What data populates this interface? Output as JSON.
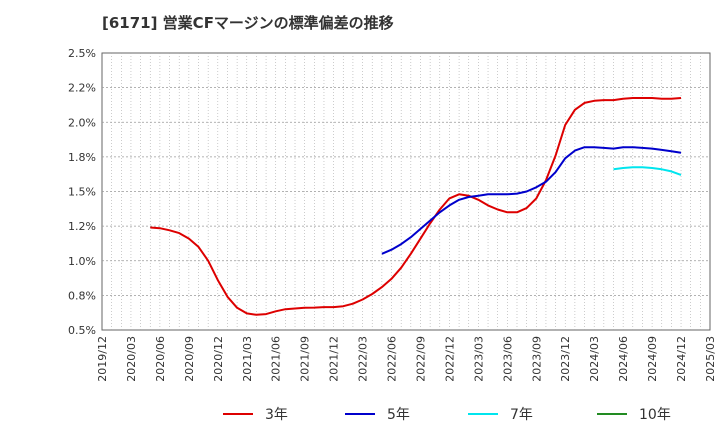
{
  "title": "[6171]  営業CFマージンの標準偏差の推移",
  "chart_data": {
    "type": "line",
    "title": "[6171]  営業CFマージンの標準偏差の推移",
    "xlabel": "",
    "ylabel": "",
    "grid": true,
    "legend_position": "bottom",
    "x_ticks": [
      "2019/12",
      "2020/03",
      "2020/06",
      "2020/09",
      "2020/12",
      "2021/03",
      "2021/06",
      "2021/09",
      "2021/12",
      "2022/03",
      "2022/06",
      "2022/09",
      "2022/12",
      "2023/03",
      "2023/06",
      "2023/09",
      "2023/12",
      "2024/03",
      "2024/06",
      "2024/09",
      "2024/12",
      "2025/03"
    ],
    "x_range": [
      "2019-12",
      "2025-03"
    ],
    "y_ticks": [
      "0.5%",
      "0.8%",
      "1.0%",
      "1.2%",
      "1.5%",
      "1.8%",
      "2.0%",
      "2.2%",
      "2.5%"
    ],
    "ylim": [
      0.5,
      2.5
    ],
    "y_unit": "%",
    "series": [
      {
        "name": "3年",
        "color": "#dd0000",
        "x": [
          "2020-05",
          "2020-06",
          "2020-07",
          "2020-08",
          "2020-09",
          "2020-10",
          "2020-11",
          "2020-12",
          "2021-01",
          "2021-02",
          "2021-03",
          "2021-04",
          "2021-05",
          "2021-06",
          "2021-07",
          "2021-08",
          "2021-09",
          "2021-10",
          "2021-11",
          "2021-12",
          "2022-01",
          "2022-02",
          "2022-03",
          "2022-04",
          "2022-05",
          "2022-06",
          "2022-07",
          "2022-08",
          "2022-09",
          "2022-10",
          "2022-11",
          "2022-12",
          "2023-01",
          "2023-02",
          "2023-03",
          "2023-04",
          "2023-05",
          "2023-06",
          "2023-07",
          "2023-08",
          "2023-09",
          "2023-10",
          "2023-11",
          "2023-12",
          "2024-01",
          "2024-02",
          "2024-03",
          "2024-04",
          "2024-05",
          "2024-06",
          "2024-07",
          "2024-08",
          "2024-09",
          "2024-10",
          "2024-11",
          "2024-12"
        ],
        "values": [
          1.24,
          1.235,
          1.22,
          1.2,
          1.16,
          1.1,
          1.0,
          0.86,
          0.74,
          0.66,
          0.62,
          0.61,
          0.615,
          0.635,
          0.65,
          0.655,
          0.66,
          0.662,
          0.665,
          0.665,
          0.672,
          0.69,
          0.72,
          0.76,
          0.81,
          0.87,
          0.95,
          1.05,
          1.16,
          1.27,
          1.37,
          1.45,
          1.48,
          1.47,
          1.44,
          1.4,
          1.37,
          1.35,
          1.35,
          1.38,
          1.45,
          1.58,
          1.76,
          1.98,
          2.09,
          2.14,
          2.155,
          2.16,
          2.16,
          2.17,
          2.175,
          2.175,
          2.175,
          2.17,
          2.17,
          2.175
        ]
      },
      {
        "name": "5年",
        "color": "#0000cc",
        "x": [
          "2022-05",
          "2022-06",
          "2022-07",
          "2022-08",
          "2022-09",
          "2022-10",
          "2022-11",
          "2022-12",
          "2023-01",
          "2023-02",
          "2023-03",
          "2023-04",
          "2023-05",
          "2023-06",
          "2023-07",
          "2023-08",
          "2023-09",
          "2023-10",
          "2023-11",
          "2023-12",
          "2024-01",
          "2024-02",
          "2024-03",
          "2024-04",
          "2024-05",
          "2024-06",
          "2024-07",
          "2024-08",
          "2024-09",
          "2024-10",
          "2024-11",
          "2024-12"
        ],
        "values": [
          1.05,
          1.08,
          1.12,
          1.17,
          1.23,
          1.29,
          1.35,
          1.4,
          1.44,
          1.46,
          1.47,
          1.48,
          1.48,
          1.48,
          1.485,
          1.5,
          1.53,
          1.57,
          1.64,
          1.74,
          1.795,
          1.82,
          1.82,
          1.815,
          1.81,
          1.82,
          1.82,
          1.815,
          1.81,
          1.8,
          1.79,
          1.78
        ]
      },
      {
        "name": "7年",
        "color": "#00e5ee",
        "x": [
          "2024-05",
          "2024-06",
          "2024-07",
          "2024-08",
          "2024-09",
          "2024-10",
          "2024-11",
          "2024-12"
        ],
        "values": [
          1.66,
          1.67,
          1.675,
          1.675,
          1.67,
          1.66,
          1.645,
          1.62
        ]
      },
      {
        "name": "10年",
        "color": "#228b22",
        "x": [],
        "values": []
      }
    ]
  }
}
